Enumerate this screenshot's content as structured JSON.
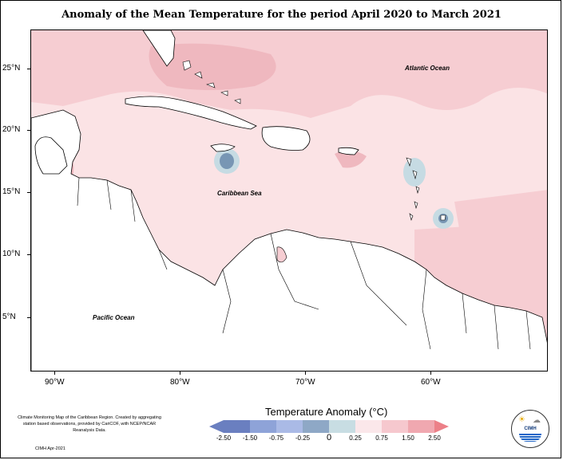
{
  "title": "Anomaly of the Mean Temperature for the period April 2020 to March 2021",
  "y_labels": [
    "25°N",
    "20°N",
    "15°N",
    "10°N",
    "5°N"
  ],
  "x_labels": [
    "90°W",
    "80°W",
    "70°W",
    "60°W"
  ],
  "regions": {
    "atlantic": "Atlantic Ocean",
    "caribbean": "Caribbean Sea",
    "pacific": "Pacific Ocean"
  },
  "legend": {
    "title": "Temperature Anomaly (°C)",
    "ticks": [
      "-2.50",
      "-1.50",
      "-0.75",
      "-0.25",
      "0",
      "0.25",
      "0.75",
      "1.50",
      "2.50"
    ],
    "colors": [
      "#6a7fc0",
      "#8ea3d8",
      "#aabae6",
      "#8ea8c6",
      "#c8dde3",
      "#fbe7ea",
      "#f6c8ce",
      "#f0a8b0",
      "#ec8088"
    ]
  },
  "footnote": "Climate Monitoring Map of the Caribbean Region. Created by aggregating station based observations, provided by CariCOF, with NCEP/NCAR Reanalysis Data.",
  "credit": "CIMH Apr-2021",
  "logo": {
    "name": "CIMH"
  },
  "colors": {
    "base": "#fbe3e5",
    "warm": "#f6cdd2",
    "warmer": "#efb8bf",
    "cool": "#c6dbe3",
    "cold": "#7896b4",
    "land": "#ffffff"
  }
}
